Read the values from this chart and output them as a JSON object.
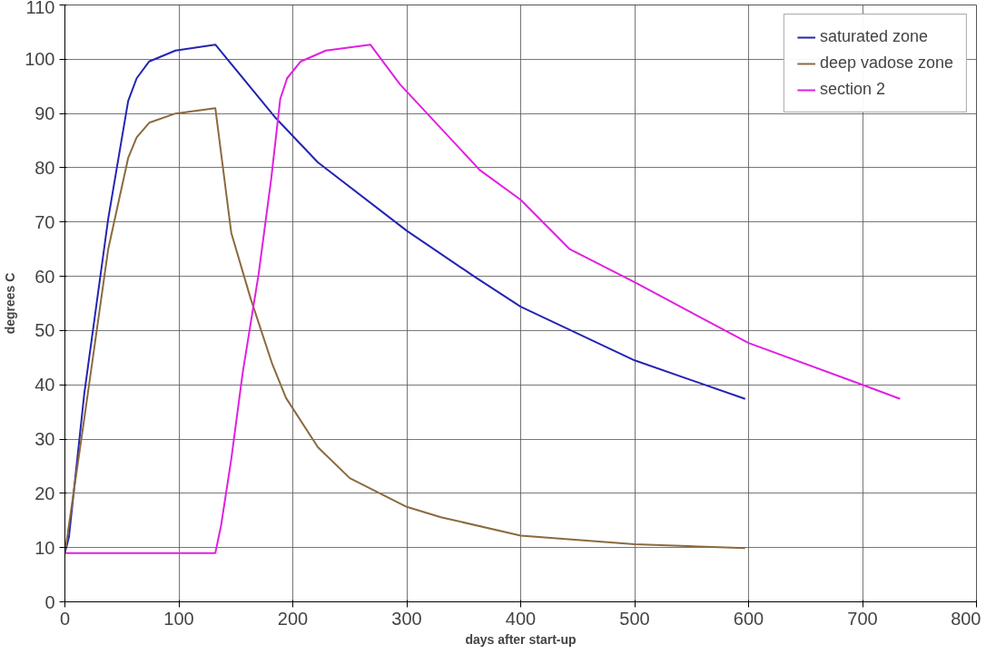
{
  "chart_data": {
    "type": "line",
    "xlabel": "days after start-up",
    "ylabel": "degrees C",
    "xlim": [
      0,
      800
    ],
    "ylim": [
      0,
      110
    ],
    "xticks": [
      0,
      100,
      200,
      300,
      400,
      500,
      600,
      700,
      800
    ],
    "yticks": [
      0,
      10,
      20,
      30,
      40,
      50,
      60,
      70,
      80,
      90,
      100,
      110
    ],
    "grid": true,
    "legend": "top right",
    "marker": "none",
    "line_style": "solid",
    "series": [
      {
        "name": "saturated zone",
        "color": "#2424b4",
        "x": [
          0,
          3.5,
          17,
          38,
          55.5,
          63,
          74,
          97,
          132,
          184,
          222,
          300,
          359,
          400,
          500,
          597
        ],
        "values": [
          9,
          11.9,
          38.4,
          70.6,
          92.3,
          96.5,
          99.6,
          101.6,
          102.7,
          89.4,
          81,
          68.4,
          60,
          54.4,
          44.5,
          37.4
        ]
      },
      {
        "name": "deep vadose zone",
        "color": "#8b6a3e",
        "x": [
          0,
          17,
          38,
          55.5,
          63,
          74,
          97,
          132,
          146,
          163,
          182,
          194,
          222,
          250,
          300,
          330,
          400,
          500,
          597
        ],
        "values": [
          9,
          33.8,
          65,
          81.8,
          85.6,
          88.3,
          90,
          91,
          68,
          55.9,
          43.8,
          37.6,
          28.5,
          22.8,
          17.5,
          15.6,
          12.2,
          10.6,
          9.9
        ]
      },
      {
        "name": "section 2",
        "color": "#e020e0",
        "x": [
          0,
          132,
          137,
          146,
          156,
          170,
          181,
          189,
          195,
          207,
          229,
          268,
          294,
          364,
          400,
          443,
          500,
          600,
          700,
          733
        ],
        "values": [
          9,
          9,
          14,
          26.3,
          42.2,
          60.4,
          77.9,
          92.7,
          96.5,
          99.6,
          101.6,
          102.7,
          95.4,
          79.6,
          74.1,
          65,
          58.9,
          47.7,
          40,
          37.4
        ]
      }
    ]
  }
}
